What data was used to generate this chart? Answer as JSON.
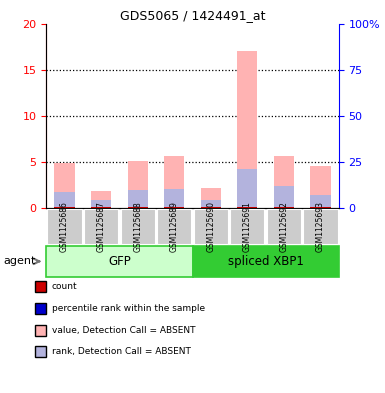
{
  "title": "GDS5065 / 1424491_at",
  "samples": [
    "GSM1125686",
    "GSM1125687",
    "GSM1125688",
    "GSM1125689",
    "GSM1125690",
    "GSM1125691",
    "GSM1125692",
    "GSM1125693"
  ],
  "value_absent": [
    4.9,
    1.9,
    5.1,
    5.7,
    2.2,
    17.0,
    5.7,
    4.6
  ],
  "rank_absent": [
    1.8,
    0.85,
    2.0,
    2.1,
    0.85,
    4.3,
    2.4,
    1.4
  ],
  "count_val": [
    0.09,
    0.09,
    0.09,
    0.09,
    0.09,
    0.09,
    0.09,
    0.09
  ],
  "rank_val": [
    0.09,
    0.09,
    0.09,
    0.09,
    0.09,
    0.09,
    0.09,
    0.09
  ],
  "ylim_left": [
    0,
    20
  ],
  "yticks_left": [
    0,
    5,
    10,
    15,
    20
  ],
  "yticks_right": [
    0,
    25,
    50,
    75,
    100
  ],
  "ytick_labels_right": [
    "0",
    "25",
    "50",
    "75",
    "100%"
  ],
  "color_value_absent": "#ffb3b3",
  "color_rank_absent": "#b3b3dd",
  "color_count": "#cc0000",
  "color_rank_blue": "#0000cc",
  "bar_width": 0.55,
  "gfp_light": "#ccffcc",
  "gfp_dark": "#33cc33",
  "xbp1_light": "#33cc33",
  "sample_box_color": "#cccccc",
  "legend_items": [
    {
      "label": "count",
      "color": "#cc0000"
    },
    {
      "label": "percentile rank within the sample",
      "color": "#0000cc"
    },
    {
      "label": "value, Detection Call = ABSENT",
      "color": "#ffb3b3"
    },
    {
      "label": "rank, Detection Call = ABSENT",
      "color": "#b3b3dd"
    }
  ]
}
